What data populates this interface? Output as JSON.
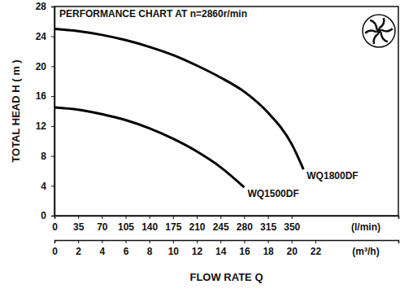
{
  "chart_data": {
    "type": "line",
    "title": "PERFORMANCE CHART AT n=2860r/min",
    "ylabel": "TOTAL HEAD H ( m )",
    "xlabel": "FLOW RATE Q",
    "x_units": "(m³/h)",
    "x2_units": "(l/min)",
    "x": [
      0,
      2,
      4,
      6,
      8,
      10,
      12,
      14,
      16,
      18,
      20,
      21
    ],
    "series": [
      {
        "name": "WQ1800DF",
        "color": "#000000",
        "line_style": "solid",
        "values": [
          25,
          24.7,
          24.2,
          23.5,
          22.6,
          21.5,
          20.1,
          18.5,
          16.6,
          13.8,
          9.6,
          6.2
        ]
      },
      {
        "name": "WQ1500DF",
        "color": "#000000",
        "line_style": "solid",
        "values": [
          14.5,
          14.2,
          13.6,
          12.8,
          11.7,
          10.3,
          8.6,
          6.5,
          3.8,
          null,
          null,
          null
        ]
      }
    ],
    "xlim": [
      0,
      29
    ],
    "xticks": [
      0,
      2,
      4,
      6,
      8,
      10,
      12,
      14,
      16,
      18,
      20,
      22
    ],
    "x2lim": [
      0,
      507.5
    ],
    "x2ticks": [
      0,
      35,
      70,
      105,
      140,
      175,
      210,
      245,
      280,
      315,
      350
    ],
    "ylim": [
      0,
      28
    ],
    "yticks": [
      0,
      4,
      8,
      12,
      16,
      20,
      24,
      28
    ],
    "grid": false
  }
}
